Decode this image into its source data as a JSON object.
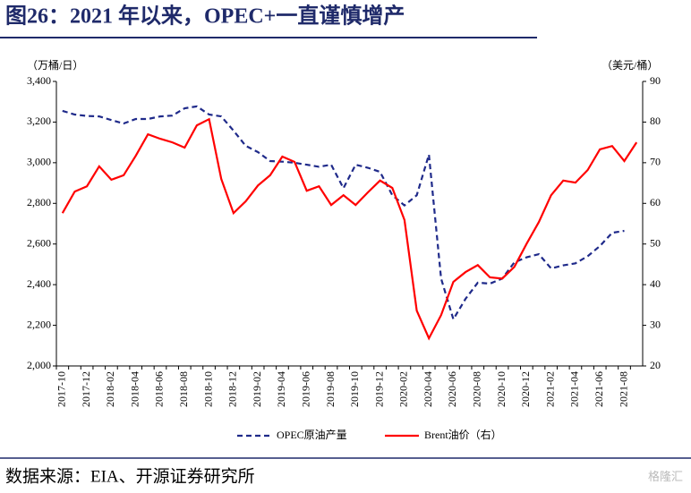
{
  "chart_data": {
    "type": "line",
    "title": "图26：2021 年以来，OPEC+一直谨慎增产",
    "y_label": "（万桶/日）",
    "y2_label": "（美元/桶）",
    "source": "数据来源：EIA、开源证券研究所",
    "watermark": "格隆汇",
    "categories": [
      "2017-10",
      null,
      "2017-12",
      null,
      "2018-02",
      null,
      "2018-04",
      null,
      "2018-06",
      null,
      "2018-08",
      null,
      "2018-10",
      null,
      "2018-12",
      null,
      "2019-02",
      null,
      "2019-04",
      null,
      "2019-06",
      null,
      "2019-08",
      null,
      "2019-10",
      null,
      "2019-12",
      null,
      "2020-02",
      null,
      "2020-04",
      null,
      "2020-06",
      null,
      "2020-08",
      null,
      "2020-10",
      null,
      "2020-12",
      null,
      "2021-02",
      null,
      "2021-04",
      null,
      "2021-06",
      null,
      "2021-08",
      null
    ],
    "series": [
      {
        "name": "OPEC原油产量",
        "color": "#1f2a8a",
        "dashed": true,
        "values": [
          3255,
          3237,
          3230,
          3228,
          3210,
          3193,
          3215,
          3215,
          3228,
          3232,
          3268,
          3277,
          3237,
          3228,
          3158,
          3083,
          3052,
          3008,
          3005,
          3000,
          2990,
          2980,
          2990,
          2875,
          2990,
          2975,
          2955,
          2840,
          2790,
          2840,
          3040,
          2430,
          2230,
          2330,
          2410,
          2405,
          2430,
          2510,
          2535,
          2550,
          2480,
          2495,
          2505,
          2540,
          2590,
          2655,
          2665,
          null
        ]
      },
      {
        "name": "Brent油价（右）",
        "color": "#ff0000",
        "axis": "y2",
        "values": [
          57.6,
          62.9,
          64.2,
          69.1,
          65.8,
          66.9,
          71.7,
          77.0,
          75.9,
          75.0,
          73.7,
          79.2,
          80.7,
          66.0,
          57.6,
          60.5,
          64.4,
          66.9,
          71.5,
          70.2,
          63.1,
          64.2,
          59.6,
          62.0,
          59.6,
          62.7,
          65.6,
          63.8,
          55.9,
          33.6,
          26.8,
          32.5,
          40.7,
          43.1,
          44.8,
          41.8,
          41.5,
          44.4,
          50.1,
          55.4,
          62.0,
          65.6,
          65.1,
          68.2,
          73.3,
          74.1,
          70.4,
          75.0
        ]
      }
    ],
    "ylim": [
      2000,
      3400
    ],
    "yticks": [
      {
        "value": 2000,
        "label": "2,000"
      },
      {
        "value": 2200,
        "label": "2,200"
      },
      {
        "value": 2400,
        "label": "2,400"
      },
      {
        "value": 2600,
        "label": "2,600"
      },
      {
        "value": 2800,
        "label": "2,800"
      },
      {
        "value": 3000,
        "label": "3,000"
      },
      {
        "value": 3200,
        "label": "3,200"
      },
      {
        "value": 3400,
        "label": "3,400"
      }
    ],
    "y2lim": [
      20,
      90
    ],
    "y2ticks": [
      20,
      30,
      40,
      50,
      60,
      70,
      80,
      90
    ],
    "grid": false,
    "legend": "bottom"
  }
}
